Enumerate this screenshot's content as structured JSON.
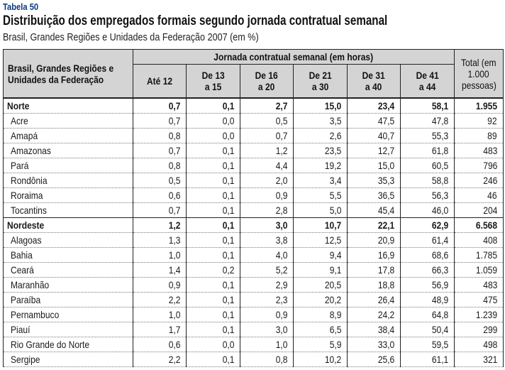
{
  "table_label": "Tabela 50",
  "title": "Distribuição dos empregados formais segundo jornada contratual semanal",
  "subtitle": "Brasil, Grandes Regiões e Unidades da Federação 2007 (em %)",
  "header": {
    "stub_line1": "Brasil, Grandes Regiões e",
    "stub_line2": "Unidades da Federação",
    "group": "Jornada contratual semanal (em horas)",
    "columns": [
      {
        "line1": "Até 12",
        "line2": ""
      },
      {
        "line1": "De 13",
        "line2": "a 15"
      },
      {
        "line1": "De 16",
        "line2": "a 20"
      },
      {
        "line1": "De 21",
        "line2": "a 30"
      },
      {
        "line1": "De 31",
        "line2": "a 40"
      },
      {
        "line1": "De 41",
        "line2": "a 44"
      }
    ],
    "total_line1": "Total (em",
    "total_line2": "1.000",
    "total_line3": "pessoas)"
  },
  "rows": [
    {
      "name": "Norte",
      "region": true,
      "values": [
        "0,7",
        "0,1",
        "2,7",
        "15,0",
        "23,4",
        "58,1",
        "1.955"
      ]
    },
    {
      "name": "Acre",
      "region": false,
      "values": [
        "0,7",
        "0,0",
        "0,5",
        "3,5",
        "47,5",
        "47,8",
        "92"
      ]
    },
    {
      "name": "Amapá",
      "region": false,
      "values": [
        "0,8",
        "0,0",
        "0,7",
        "2,6",
        "40,7",
        "55,3",
        "89"
      ]
    },
    {
      "name": "Amazonas",
      "region": false,
      "values": [
        "0,7",
        "0,1",
        "1,2",
        "23,5",
        "12,7",
        "61,8",
        "483"
      ]
    },
    {
      "name": "Pará",
      "region": false,
      "values": [
        "0,8",
        "0,1",
        "4,4",
        "19,2",
        "15,0",
        "60,5",
        "796"
      ]
    },
    {
      "name": "Rondônia",
      "region": false,
      "values": [
        "0,5",
        "0,1",
        "2,0",
        "3,4",
        "35,3",
        "58,8",
        "246"
      ]
    },
    {
      "name": "Roraima",
      "region": false,
      "values": [
        "0,6",
        "0,1",
        "0,9",
        "5,5",
        "36,5",
        "56,3",
        "46"
      ]
    },
    {
      "name": "Tocantins",
      "region": false,
      "values": [
        "0,7",
        "0,1",
        "2,8",
        "5,0",
        "45,4",
        "46,0",
        "204"
      ]
    },
    {
      "name": "Nordeste",
      "region": true,
      "values": [
        "1,2",
        "0,1",
        "3,0",
        "10,7",
        "22,1",
        "62,9",
        "6.568"
      ]
    },
    {
      "name": "Alagoas",
      "region": false,
      "values": [
        "1,3",
        "0,1",
        "3,8",
        "12,5",
        "20,9",
        "61,4",
        "408"
      ]
    },
    {
      "name": "Bahia",
      "region": false,
      "values": [
        "1,0",
        "0,1",
        "4,0",
        "9,4",
        "16,9",
        "68,6",
        "1.785"
      ]
    },
    {
      "name": "Ceará",
      "region": false,
      "values": [
        "1,4",
        "0,2",
        "5,2",
        "9,1",
        "17,8",
        "66,3",
        "1.059"
      ]
    },
    {
      "name": "Maranhão",
      "region": false,
      "values": [
        "0,9",
        "0,1",
        "2,9",
        "20,5",
        "18,8",
        "56,9",
        "483"
      ]
    },
    {
      "name": "Paraíba",
      "region": false,
      "values": [
        "2,2",
        "0,1",
        "2,3",
        "20,2",
        "26,4",
        "48,9",
        "475"
      ]
    },
    {
      "name": "Pernambuco",
      "region": false,
      "values": [
        "1,0",
        "0,1",
        "0,9",
        "8,9",
        "24,2",
        "64,8",
        "1.239"
      ]
    },
    {
      "name": "Piauí",
      "region": false,
      "values": [
        "1,7",
        "0,1",
        "3,0",
        "6,5",
        "38,4",
        "50,4",
        "299"
      ]
    },
    {
      "name": "Rio Grande do Norte",
      "region": false,
      "values": [
        "0,6",
        "0,0",
        "1,0",
        "5,9",
        "33,0",
        "59,5",
        "498"
      ]
    },
    {
      "name": "Sergipe",
      "region": false,
      "values": [
        "2,2",
        "0,1",
        "0,8",
        "10,2",
        "25,6",
        "61,1",
        "321"
      ]
    }
  ]
}
